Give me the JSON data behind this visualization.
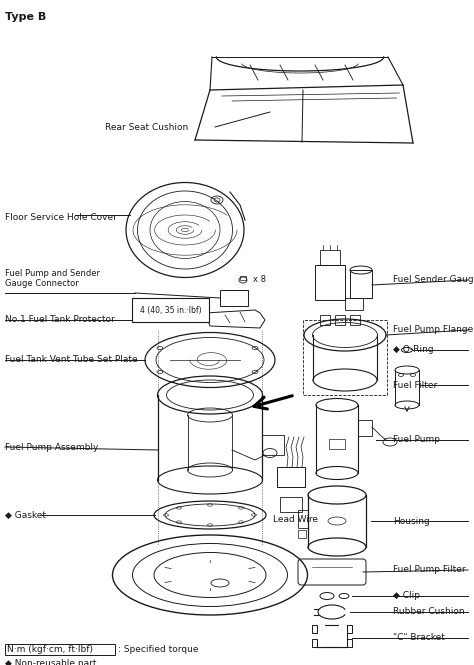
{
  "title": "Type B",
  "bg_color": "#ffffff",
  "labels": {
    "rear_seat_cushion": "Rear Seat Cushion",
    "floor_service_hole_cover": "Floor Service Hole Cover",
    "fuel_pump_sender_gauge": "Fuel Pump and Sender\nGauge Connector",
    "torque_label": "4 (40, 35 in.·lbf)",
    "x8": "x 8",
    "no1_fuel_tank_protector": "No.1 Fuel Tank Protector",
    "fuel_tank_vent": "Fuel Tank Vent Tube Set Plate",
    "fuel_pump_assembly": "Fuel Pump Assembly",
    "gasket": "◆ Gasket",
    "lead_wire": "Lead Wire",
    "fuel_sender_gauge": "Fuel Sender Gauge",
    "fuel_pump_flange": "Fuel Pump Flange",
    "o_ring": "◆ O-Ring",
    "fuel_filter": "Fuel Filter",
    "fuel_pump": "Fuel Pump",
    "housing": "Housing",
    "fuel_pump_filter": "Fuel Pump Filter",
    "clip": "◆ Clip",
    "rubber_cushion": "Rubber Cushion",
    "c_bracket": "\"C\" Bracket",
    "legend_torque": "N·m (kgf·cm, ft·lbf)",
    "legend_torque2": ": Specified torque",
    "legend_nonreuse": "◆ Non-reusable part"
  },
  "font_sizes": {
    "title": 8,
    "labels": 6.5,
    "small": 6,
    "legend": 6.5
  },
  "line_color": "#1a1a1a",
  "text_color": "#1a1a1a"
}
